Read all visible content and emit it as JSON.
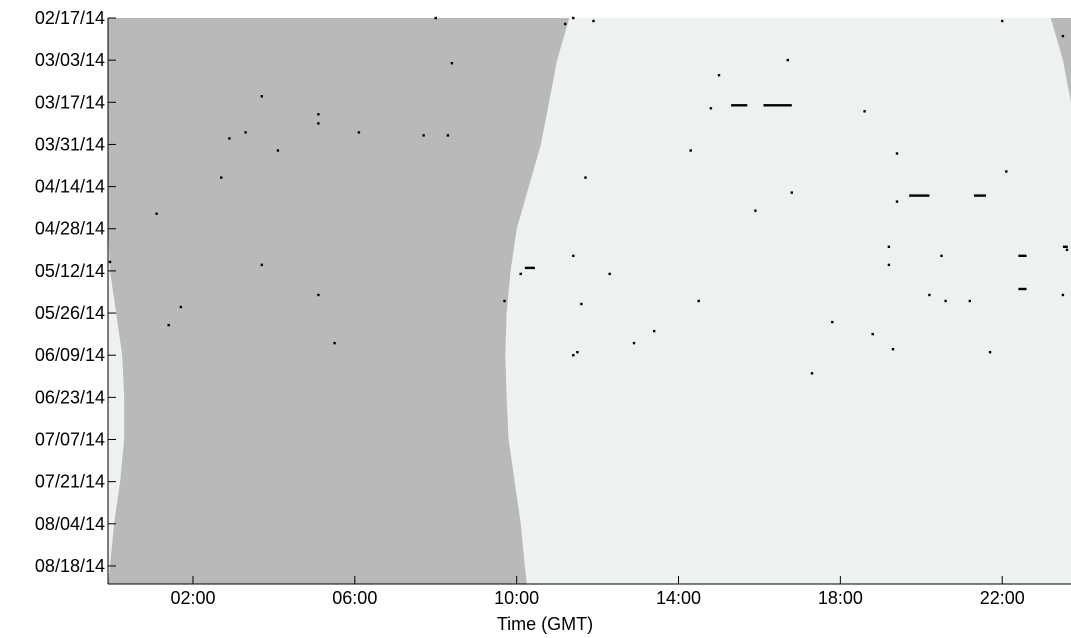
{
  "chart_data": {
    "type": "scatter",
    "title": "",
    "xlabel": "Time (GMT)",
    "ylabel": "",
    "x_unit": "hours (GMT)",
    "xlim": [
      -0.1,
      23.7
    ],
    "x_ticks": [
      {
        "value": 2,
        "label": "02:00"
      },
      {
        "value": 6,
        "label": "06:00"
      },
      {
        "value": 10,
        "label": "10:00"
      },
      {
        "value": 14,
        "label": "14:00"
      },
      {
        "value": 18,
        "label": "18:00"
      },
      {
        "value": 22,
        "label": "22:00"
      }
    ],
    "ylim": [
      "2014-02-17",
      "2014-08-24"
    ],
    "y_ticks": [
      {
        "value": "2014-02-17",
        "label": "02/17/14"
      },
      {
        "value": "2014-03-03",
        "label": "03/03/14"
      },
      {
        "value": "2014-03-17",
        "label": "03/17/14"
      },
      {
        "value": "2014-03-31",
        "label": "03/31/14"
      },
      {
        "value": "2014-04-14",
        "label": "04/14/14"
      },
      {
        "value": "2014-04-28",
        "label": "04/28/14"
      },
      {
        "value": "2014-05-12",
        "label": "05/12/14"
      },
      {
        "value": "2014-05-26",
        "label": "05/26/14"
      },
      {
        "value": "2014-06-09",
        "label": "06/09/14"
      },
      {
        "value": "2014-06-23",
        "label": "06/23/14"
      },
      {
        "value": "2014-07-07",
        "label": "07/07/14"
      },
      {
        "value": "2014-07-21",
        "label": "07/21/14"
      },
      {
        "value": "2014-08-04",
        "label": "08/04/14"
      },
      {
        "value": "2014-08-18",
        "label": "08/18/14"
      }
    ],
    "grid": false,
    "legend": "none",
    "colors": {
      "night": "#b9b9b9",
      "day": "#edf2f1",
      "marker": "#000000",
      "axis": "#000000"
    },
    "background_regions": {
      "night_color": "#b9b9b9",
      "day_color": "#edf2f1",
      "boundaries": [
        {
          "date": "2014-02-17",
          "sunrise": 11.3,
          "sunset": 23.2,
          "late_day_end": -0.1
        },
        {
          "date": "2014-03-03",
          "sunrise": 11.0,
          "sunset": 23.5,
          "late_day_end": -0.1
        },
        {
          "date": "2014-03-17",
          "sunrise": 10.8,
          "sunset": 23.7,
          "late_day_end": -0.1
        },
        {
          "date": "2014-03-31",
          "sunrise": 10.6,
          "sunset": 23.7,
          "late_day_end": -0.1
        },
        {
          "date": "2014-04-14",
          "sunrise": 10.3,
          "sunset": 23.7,
          "late_day_end": -0.1
        },
        {
          "date": "2014-04-28",
          "sunrise": 10.0,
          "sunset": 23.7,
          "late_day_end": -0.1
        },
        {
          "date": "2014-05-12",
          "sunrise": 9.85,
          "sunset": 23.7,
          "late_day_end": -0.05
        },
        {
          "date": "2014-05-26",
          "sunrise": 9.75,
          "sunset": 23.7,
          "late_day_end": 0.1
        },
        {
          "date": "2014-06-09",
          "sunrise": 9.72,
          "sunset": 23.7,
          "late_day_end": 0.25
        },
        {
          "date": "2014-06-23",
          "sunrise": 9.75,
          "sunset": 23.7,
          "late_day_end": 0.3
        },
        {
          "date": "2014-07-07",
          "sunrise": 9.8,
          "sunset": 23.7,
          "late_day_end": 0.3
        },
        {
          "date": "2014-07-21",
          "sunrise": 9.95,
          "sunset": 23.7,
          "late_day_end": 0.2
        },
        {
          "date": "2014-08-04",
          "sunrise": 10.1,
          "sunset": 23.7,
          "late_day_end": 0.05
        },
        {
          "date": "2014-08-18",
          "sunrise": 10.2,
          "sunset": 23.7,
          "late_day_end": -0.05
        },
        {
          "date": "2014-08-24",
          "sunrise": 10.25,
          "sunset": 23.7,
          "late_day_end": -0.1
        }
      ]
    },
    "points": [
      {
        "time": 8.0,
        "date": "2014-02-17"
      },
      {
        "time": 11.4,
        "date": "2014-02-17"
      },
      {
        "time": 11.9,
        "date": "2014-02-18"
      },
      {
        "time": 11.2,
        "date": "2014-02-19"
      },
      {
        "time": 22.0,
        "date": "2014-02-18"
      },
      {
        "time": 23.5,
        "date": "2014-02-23"
      },
      {
        "time": 8.4,
        "date": "2014-03-04"
      },
      {
        "time": 16.7,
        "date": "2014-03-03"
      },
      {
        "time": 15.0,
        "date": "2014-03-08"
      },
      {
        "time": 3.7,
        "date": "2014-03-15"
      },
      {
        "time": 14.8,
        "date": "2014-03-19"
      },
      {
        "time": 18.6,
        "date": "2014-03-20"
      },
      {
        "time": 5.1,
        "date": "2014-03-21"
      },
      {
        "time": 5.1,
        "date": "2014-03-24"
      },
      {
        "time": 3.3,
        "date": "2014-03-27"
      },
      {
        "time": 6.1,
        "date": "2014-03-27"
      },
      {
        "time": 2.9,
        "date": "2014-03-29"
      },
      {
        "time": 7.7,
        "date": "2014-03-28"
      },
      {
        "time": 8.3,
        "date": "2014-03-28"
      },
      {
        "time": 4.1,
        "date": "2014-04-02"
      },
      {
        "time": 14.3,
        "date": "2014-04-02"
      },
      {
        "time": 19.4,
        "date": "2014-04-03"
      },
      {
        "time": 2.7,
        "date": "2014-04-11"
      },
      {
        "time": 11.7,
        "date": "2014-04-11"
      },
      {
        "time": 22.1,
        "date": "2014-04-09"
      },
      {
        "time": 16.8,
        "date": "2014-04-16"
      },
      {
        "time": 19.4,
        "date": "2014-04-19"
      },
      {
        "time": 15.9,
        "date": "2014-04-22"
      },
      {
        "time": 1.1,
        "date": "2014-04-23"
      },
      {
        "time": 19.2,
        "date": "2014-05-04"
      },
      {
        "time": 11.4,
        "date": "2014-05-07"
      },
      {
        "time": 20.5,
        "date": "2014-05-07"
      },
      {
        "time": 23.6,
        "date": "2014-05-05"
      },
      {
        "time": 3.7,
        "date": "2014-05-10"
      },
      {
        "time": -0.05,
        "date": "2014-05-09"
      },
      {
        "time": 19.2,
        "date": "2014-05-10"
      },
      {
        "time": 10.1,
        "date": "2014-05-13"
      },
      {
        "time": 12.3,
        "date": "2014-05-13"
      },
      {
        "time": 5.1,
        "date": "2014-05-20"
      },
      {
        "time": 20.2,
        "date": "2014-05-20"
      },
      {
        "time": 23.5,
        "date": "2014-05-20"
      },
      {
        "time": 9.7,
        "date": "2014-05-22"
      },
      {
        "time": 14.5,
        "date": "2014-05-22"
      },
      {
        "time": 20.6,
        "date": "2014-05-22"
      },
      {
        "time": 21.2,
        "date": "2014-05-22"
      },
      {
        "time": 11.6,
        "date": "2014-05-23"
      },
      {
        "time": 1.7,
        "date": "2014-05-24"
      },
      {
        "time": 17.8,
        "date": "2014-05-29"
      },
      {
        "time": 1.4,
        "date": "2014-05-30"
      },
      {
        "time": 13.4,
        "date": "2014-06-01"
      },
      {
        "time": 18.8,
        "date": "2014-06-02"
      },
      {
        "time": 5.5,
        "date": "2014-06-05"
      },
      {
        "time": 12.9,
        "date": "2014-06-05"
      },
      {
        "time": 19.3,
        "date": "2014-06-07"
      },
      {
        "time": 11.5,
        "date": "2014-06-08"
      },
      {
        "time": 11.4,
        "date": "2014-06-09"
      },
      {
        "time": 21.7,
        "date": "2014-06-08"
      },
      {
        "time": 17.3,
        "date": "2014-06-15"
      }
    ],
    "segments": [
      {
        "start": 15.3,
        "end": 15.7,
        "date": "2014-03-18"
      },
      {
        "start": 16.1,
        "end": 16.8,
        "date": "2014-03-18"
      },
      {
        "start": 19.7,
        "end": 20.2,
        "date": "2014-04-17"
      },
      {
        "start": 21.3,
        "end": 21.6,
        "date": "2014-04-17"
      },
      {
        "start": 10.2,
        "end": 10.45,
        "date": "2014-05-11"
      },
      {
        "start": 22.4,
        "end": 22.6,
        "date": "2014-05-07"
      },
      {
        "start": 22.4,
        "end": 22.6,
        "date": "2014-05-18"
      },
      {
        "start": 23.5,
        "end": 23.62,
        "date": "2014-05-04"
      }
    ]
  }
}
